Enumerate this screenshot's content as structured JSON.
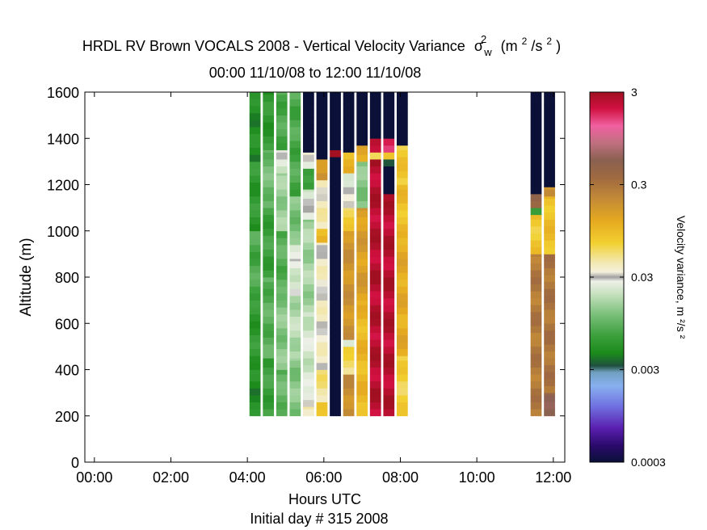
{
  "chart_data": {
    "type": "heatmap",
    "title": {
      "prefix": "HRDL RV Brown VOCALS 2008 - Vertical Velocity Variance",
      "sigma": "σ",
      "sigma_sup": "2",
      "sigma_sub": "w",
      "units_open": "(m",
      "units_sup1": "2",
      "units_mid": "/s",
      "units_sup2": "2",
      "units_close": ")"
    },
    "subtitle": "00:00 11/10/08 to 12:00 11/10/08",
    "xlabel": "Hours UTC",
    "xlabel2": "Initial day # 315  2008",
    "ylabel": "Altitude (m)",
    "xlim": [
      -0.25,
      12.3
    ],
    "ylim": [
      0,
      1600
    ],
    "x_ticks": [
      {
        "v": 0,
        "label": "00:00"
      },
      {
        "v": 2,
        "label": "02:00"
      },
      {
        "v": 4,
        "label": "04:00"
      },
      {
        "v": 6,
        "label": "06:00"
      },
      {
        "v": 8,
        "label": "08:00"
      },
      {
        "v": 10,
        "label": "10:00"
      },
      {
        "v": 12,
        "label": "12:00"
      }
    ],
    "y_ticks": [
      {
        "v": 0,
        "label": "0"
      },
      {
        "v": 200,
        "label": "200"
      },
      {
        "v": 400,
        "label": "400"
      },
      {
        "v": 600,
        "label": "600"
      },
      {
        "v": 800,
        "label": "800"
      },
      {
        "v": 1000,
        "label": "1000"
      },
      {
        "v": 1200,
        "label": "1200"
      },
      {
        "v": 1400,
        "label": "1400"
      },
      {
        "v": 1600,
        "label": "1600"
      }
    ],
    "colorbar": {
      "label": "Velocity variance, m ²/s ²",
      "scale": "log",
      "range": [
        0.0003,
        3
      ],
      "ticks": [
        {
          "v": 0.0003,
          "label": "0.0003"
        },
        {
          "v": 0.003,
          "label": "0.003"
        },
        {
          "v": 0.03,
          "label": "0.03"
        },
        {
          "v": 0.3,
          "label": "0.3"
        },
        {
          "v": 3,
          "label": "3"
        }
      ],
      "stops": [
        {
          "v": 0.0003,
          "color": "#0a1038"
        },
        {
          "v": 0.00045,
          "color": "#2a0a6a"
        },
        {
          "v": 0.0007,
          "color": "#5a20b0"
        },
        {
          "v": 0.0012,
          "color": "#7070e0"
        },
        {
          "v": 0.002,
          "color": "#88b0f0"
        },
        {
          "v": 0.0028,
          "color": "#70a0c0"
        },
        {
          "v": 0.0033,
          "color": "#205040"
        },
        {
          "v": 0.0045,
          "color": "#1a8a1a"
        },
        {
          "v": 0.007,
          "color": "#3ca03c"
        },
        {
          "v": 0.012,
          "color": "#7cc07c"
        },
        {
          "v": 0.02,
          "color": "#c8e2c0"
        },
        {
          "v": 0.027,
          "color": "#eef0e8"
        },
        {
          "v": 0.03,
          "color": "#a0a0a0"
        },
        {
          "v": 0.034,
          "color": "#f4f0dc"
        },
        {
          "v": 0.045,
          "color": "#f2e6a8"
        },
        {
          "v": 0.07,
          "color": "#f2d030"
        },
        {
          "v": 0.12,
          "color": "#e6aa20"
        },
        {
          "v": 0.22,
          "color": "#c08838"
        },
        {
          "v": 0.35,
          "color": "#a06a40"
        },
        {
          "v": 0.55,
          "color": "#8a6050"
        },
        {
          "v": 0.85,
          "color": "#c07080"
        },
        {
          "v": 1.3,
          "color": "#f060a0"
        },
        {
          "v": 2.0,
          "color": "#d01040"
        },
        {
          "v": 3.0,
          "color": "#a01020"
        }
      ]
    },
    "bin_width_hours": 0.29,
    "bin_height_m": 30,
    "columns": [
      {
        "x": 4.2,
        "top": 1600,
        "segments": [
          {
            "y0": 200,
            "y1": 400,
            "value": 0.005
          },
          {
            "y0": 400,
            "y1": 700,
            "value": 0.006
          },
          {
            "y0": 700,
            "y1": 1000,
            "value": 0.008
          },
          {
            "y0": 1000,
            "y1": 1300,
            "value": 0.006
          },
          {
            "y0": 1300,
            "y1": 1600,
            "value": 0.005
          }
        ]
      },
      {
        "x": 4.55,
        "top": 1600,
        "segments": [
          {
            "y0": 200,
            "y1": 450,
            "value": 0.007
          },
          {
            "y0": 450,
            "y1": 800,
            "value": 0.009
          },
          {
            "y0": 800,
            "y1": 1100,
            "value": 0.007
          },
          {
            "y0": 1100,
            "y1": 1350,
            "value": 0.011
          },
          {
            "y0": 1350,
            "y1": 1600,
            "value": 0.006
          }
        ]
      },
      {
        "x": 4.9,
        "top": 1600,
        "segments": [
          {
            "y0": 200,
            "y1": 400,
            "value": 0.01
          },
          {
            "y0": 400,
            "y1": 700,
            "value": 0.013
          },
          {
            "y0": 700,
            "y1": 1000,
            "value": 0.009
          },
          {
            "y0": 1000,
            "y1": 1250,
            "value": 0.015
          },
          {
            "y0": 1250,
            "y1": 1350,
            "value": 0.024
          },
          {
            "y0": 1350,
            "y1": 1600,
            "value": 0.008
          }
        ]
      },
      {
        "x": 5.25,
        "top": 1600,
        "segments": [
          {
            "y0": 200,
            "y1": 450,
            "value": 0.013
          },
          {
            "y0": 450,
            "y1": 720,
            "value": 0.018
          },
          {
            "y0": 720,
            "y1": 880,
            "value": 0.024
          },
          {
            "y0": 880,
            "y1": 940,
            "value": 0.03
          },
          {
            "y0": 940,
            "y1": 1150,
            "value": 0.012
          },
          {
            "y0": 1150,
            "y1": 1600,
            "value": 0.008
          }
        ]
      },
      {
        "x": 5.6,
        "top": 1600,
        "segments": [
          {
            "y0": 200,
            "y1": 240,
            "value": 0.04
          },
          {
            "y0": 240,
            "y1": 300,
            "value": 0.03
          },
          {
            "y0": 300,
            "y1": 650,
            "value": 0.022
          },
          {
            "y0": 650,
            "y1": 1050,
            "value": 0.016
          },
          {
            "y0": 1050,
            "y1": 1180,
            "value": 0.025
          },
          {
            "y0": 1180,
            "y1": 1270,
            "value": 0.006
          },
          {
            "y0": 1270,
            "y1": 1340,
            "value": 0.03
          },
          {
            "y0": 1340,
            "y1": 1600,
            "value": 0.0003
          }
        ]
      },
      {
        "x": 5.95,
        "top": 1600,
        "segments": [
          {
            "y0": 200,
            "y1": 260,
            "value": 0.07
          },
          {
            "y0": 260,
            "y1": 400,
            "value": 0.05
          },
          {
            "y0": 400,
            "y1": 950,
            "value": 0.036
          },
          {
            "y0": 950,
            "y1": 1010,
            "value": 0.09
          },
          {
            "y0": 1010,
            "y1": 1220,
            "value": 0.04
          },
          {
            "y0": 1220,
            "y1": 1310,
            "value": 0.18
          },
          {
            "y0": 1310,
            "y1": 1600,
            "value": 0.0003
          }
        ]
      },
      {
        "x": 6.3,
        "top": 1600,
        "segments": [
          {
            "y0": 200,
            "y1": 1320,
            "value": 0.0003
          },
          {
            "y0": 1320,
            "y1": 1350,
            "value": 2.5
          },
          {
            "y0": 1350,
            "y1": 1600,
            "value": 0.0003
          }
        ]
      },
      {
        "x": 6.65,
        "top": 1600,
        "segments": [
          {
            "y0": 200,
            "y1": 380,
            "value": 0.2
          },
          {
            "y0": 380,
            "y1": 500,
            "value": 0.06
          },
          {
            "y0": 500,
            "y1": 530,
            "value": 0.03
          },
          {
            "y0": 530,
            "y1": 1000,
            "value": 0.18
          },
          {
            "y0": 1000,
            "y1": 1100,
            "value": 0.07
          },
          {
            "y0": 1100,
            "y1": 1250,
            "value": 0.028
          },
          {
            "y0": 1250,
            "y1": 1340,
            "value": 0.1
          },
          {
            "y0": 1340,
            "y1": 1600,
            "value": 0.0003
          }
        ]
      },
      {
        "x": 7.0,
        "top": 1600,
        "segments": [
          {
            "y0": 200,
            "y1": 700,
            "value": 0.1
          },
          {
            "y0": 700,
            "y1": 1100,
            "value": 0.15
          },
          {
            "y0": 1100,
            "y1": 1300,
            "value": 0.013
          },
          {
            "y0": 1300,
            "y1": 1370,
            "value": 0.12
          },
          {
            "y0": 1370,
            "y1": 1600,
            "value": 0.0003
          }
        ]
      },
      {
        "x": 7.35,
        "top": 1600,
        "segments": [
          {
            "y0": 200,
            "y1": 1310,
            "value": 2.5
          },
          {
            "y0": 1310,
            "y1": 1340,
            "value": 0.07
          },
          {
            "y0": 1340,
            "y1": 1400,
            "value": 2.0
          },
          {
            "y0": 1400,
            "y1": 1600,
            "value": 0.0003
          }
        ]
      },
      {
        "x": 7.7,
        "top": 1600,
        "segments": [
          {
            "y0": 200,
            "y1": 1160,
            "value": 2.5
          },
          {
            "y0": 1160,
            "y1": 1280,
            "value": 0.0003
          },
          {
            "y0": 1280,
            "y1": 1310,
            "value": 0.004
          },
          {
            "y0": 1310,
            "y1": 1340,
            "value": 0.07
          },
          {
            "y0": 1340,
            "y1": 1400,
            "value": 2.0
          },
          {
            "y0": 1400,
            "y1": 1600,
            "value": 0.0003
          }
        ]
      },
      {
        "x": 8.05,
        "top": 1600,
        "segments": [
          {
            "y0": 200,
            "y1": 460,
            "value": 0.07
          },
          {
            "y0": 460,
            "y1": 1000,
            "value": 0.12
          },
          {
            "y0": 1000,
            "y1": 1200,
            "value": 0.09
          },
          {
            "y0": 1200,
            "y1": 1370,
            "value": 0.08
          },
          {
            "y0": 1370,
            "y1": 1600,
            "value": 0.0003
          }
        ]
      },
      {
        "x": 11.55,
        "top": 1600,
        "segments": [
          {
            "y0": 200,
            "y1": 900,
            "value": 0.28
          },
          {
            "y0": 900,
            "y1": 1070,
            "value": 0.08
          },
          {
            "y0": 1070,
            "y1": 1100,
            "value": 0.007
          },
          {
            "y0": 1100,
            "y1": 1160,
            "value": 0.4
          },
          {
            "y0": 1160,
            "y1": 1600,
            "value": 0.0003
          }
        ]
      },
      {
        "x": 11.9,
        "top": 1600,
        "segments": [
          {
            "y0": 200,
            "y1": 300,
            "value": 0.5
          },
          {
            "y0": 300,
            "y1": 900,
            "value": 0.3
          },
          {
            "y0": 900,
            "y1": 1150,
            "value": 0.09
          },
          {
            "y0": 1150,
            "y1": 1190,
            "value": 0.2
          },
          {
            "y0": 1190,
            "y1": 1600,
            "value": 0.0003
          }
        ]
      }
    ]
  }
}
